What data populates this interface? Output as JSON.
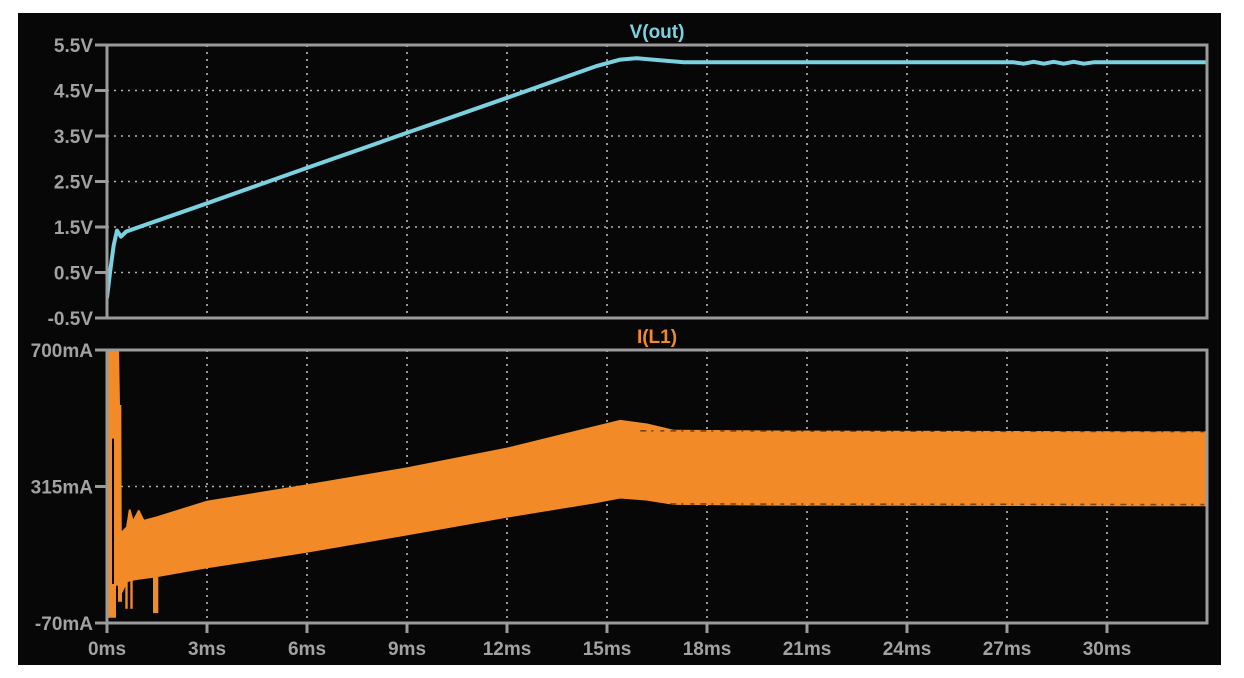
{
  "page": {
    "background": "#ffffff",
    "canvas_background": "#070707"
  },
  "axis": {
    "label_color": "#a2a2a2",
    "frame_color": "#9b9b9b",
    "grid_color": "#cfcfcf"
  },
  "chart_data": [
    {
      "type": "line",
      "title": "V(out)",
      "color": "#7cd1e0",
      "x_unit": "ms",
      "y_unit": "V",
      "xlim": [
        0,
        33
      ],
      "ylim": [
        -0.5,
        5.5
      ],
      "grid_x": [
        3,
        6,
        9,
        12,
        15,
        18,
        21,
        24,
        27,
        30
      ],
      "grid_y": [
        4.5,
        3.5,
        2.5,
        1.5,
        0.5
      ],
      "y_ticks": [
        {
          "value": 5.5,
          "label": "5.5V"
        },
        {
          "value": 4.5,
          "label": "4.5V"
        },
        {
          "value": 3.5,
          "label": "3.5V"
        },
        {
          "value": 2.5,
          "label": "2.5V"
        },
        {
          "value": 1.5,
          "label": "1.5V"
        },
        {
          "value": 0.5,
          "label": "0.5V"
        },
        {
          "value": -0.5,
          "label": "-0.5V"
        }
      ],
      "points": [
        [
          0,
          -0.05
        ],
        [
          0.1,
          0.55
        ],
        [
          0.2,
          1.1
        ],
        [
          0.3,
          1.42
        ],
        [
          0.42,
          1.29
        ],
        [
          0.58,
          1.4
        ],
        [
          3,
          2.02
        ],
        [
          6,
          2.8
        ],
        [
          9,
          3.57
        ],
        [
          12,
          4.34
        ],
        [
          14.7,
          5.04
        ],
        [
          15.4,
          5.18
        ],
        [
          15.9,
          5.21
        ],
        [
          16.5,
          5.17
        ],
        [
          17.3,
          5.12
        ],
        [
          27.2,
          5.12
        ],
        [
          27.5,
          5.09
        ],
        [
          27.8,
          5.13
        ],
        [
          28.1,
          5.09
        ],
        [
          28.4,
          5.13
        ],
        [
          28.7,
          5.09
        ],
        [
          29.0,
          5.13
        ],
        [
          29.3,
          5.09
        ],
        [
          29.6,
          5.12
        ],
        [
          33,
          5.12
        ]
      ]
    },
    {
      "type": "band",
      "title": "I(L1)",
      "color": "#f28a28",
      "x_unit": "ms",
      "y_unit": "mA",
      "xlim": [
        0,
        33
      ],
      "ylim": [
        -70,
        700
      ],
      "grid_x": [
        3,
        6,
        9,
        12,
        15,
        18,
        21,
        24,
        27,
        30
      ],
      "grid_y": [
        315
      ],
      "y_ticks": [
        {
          "value": 700,
          "label": "700mA"
        },
        {
          "value": 315,
          "label": "315mA"
        },
        {
          "value": -70,
          "label": "-70mA"
        }
      ],
      "x_ticks": [
        {
          "value": 0,
          "label": "0ms"
        },
        {
          "value": 3,
          "label": "3ms"
        },
        {
          "value": 6,
          "label": "6ms"
        },
        {
          "value": 9,
          "label": "9ms"
        },
        {
          "value": 12,
          "label": "12ms"
        },
        {
          "value": 15,
          "label": "15ms"
        },
        {
          "value": 18,
          "label": "18ms"
        },
        {
          "value": 21,
          "label": "21ms"
        },
        {
          "value": 24,
          "label": "24ms"
        },
        {
          "value": 27,
          "label": "27ms"
        },
        {
          "value": 30,
          "label": "30ms"
        }
      ],
      "band": {
        "points": [
          [
            0.44,
            185,
            18
          ],
          [
            0.6,
            200,
            48
          ],
          [
            0.68,
            248,
            50
          ],
          [
            0.78,
            215,
            52
          ],
          [
            0.95,
            246,
            55
          ],
          [
            1.1,
            218,
            57
          ],
          [
            1.5,
            228,
            62
          ],
          [
            3,
            272,
            87
          ],
          [
            6,
            318,
            131
          ],
          [
            9,
            366,
            180
          ],
          [
            12,
            422,
            230
          ],
          [
            14.6,
            482,
            270
          ],
          [
            15.4,
            500,
            284
          ],
          [
            16.2,
            490,
            278
          ],
          [
            17,
            472,
            266
          ],
          [
            20,
            470,
            264
          ],
          [
            26,
            469,
            263
          ],
          [
            33,
            468,
            262
          ]
        ]
      },
      "startup_spike": {
        "outline": [
          [
            -0.06,
            -55
          ],
          [
            -0.06,
            700
          ],
          [
            0.36,
            700
          ],
          [
            0.39,
            545
          ],
          [
            0.43,
            545
          ],
          [
            0.45,
            -10
          ],
          [
            0.33,
            -10
          ],
          [
            0.33,
            35
          ],
          [
            0.27,
            35
          ],
          [
            0.27,
            -55
          ]
        ]
      },
      "notch": {
        "t": 0.18,
        "from": 450,
        "to": 40,
        "color": "#000000"
      },
      "down_spikes": [
        {
          "t": 0.585,
          "width": 0.07,
          "from": 60,
          "to": -30
        },
        {
          "t": 0.735,
          "width": 0.07,
          "from": 60,
          "to": -30
        },
        {
          "t": 1.46,
          "width": 0.16,
          "from": 66,
          "to": -42
        }
      ],
      "edge_noise": {
        "t1": 16,
        "t2": 33,
        "opacity": 0.5
      }
    }
  ]
}
